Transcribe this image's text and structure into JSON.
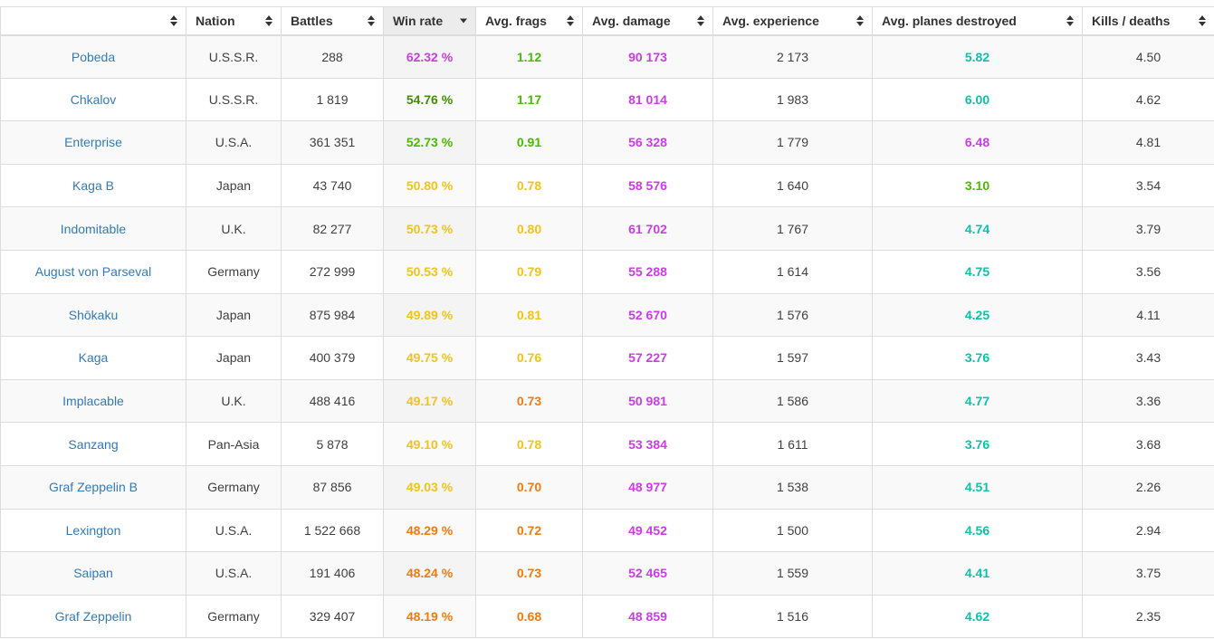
{
  "palette": {
    "violet": "#cb3ce8",
    "teal": "#0cc2a8",
    "green": "#4ab900",
    "dark_green": "#448c00",
    "yellow": "#f2c318",
    "orange": "#f57a0d",
    "link_blue": "#337ab7",
    "header_text": "#333333",
    "body_text": "#404040",
    "border": "#dddddd",
    "stripe_bg": "#f9f9f9",
    "active_sort_bg": "#ececec"
  },
  "table": {
    "columns": [
      {
        "id": "ship",
        "label": "",
        "sort": "both",
        "active": false
      },
      {
        "id": "nation",
        "label": "Nation",
        "sort": "both",
        "active": false
      },
      {
        "id": "battles",
        "label": "Battles",
        "sort": "both",
        "active": false
      },
      {
        "id": "win-rate",
        "label": "Win rate",
        "sort": "desc",
        "active": true
      },
      {
        "id": "avg-frags",
        "label": "Avg. frags",
        "sort": "both",
        "active": false
      },
      {
        "id": "avg-damage",
        "label": "Avg. damage",
        "sort": "both",
        "active": false
      },
      {
        "id": "avg-experience",
        "label": "Avg. experience",
        "sort": "both",
        "active": false
      },
      {
        "id": "avg-planes-destroyed",
        "label": "Avg. planes destroyed",
        "sort": "both",
        "active": false
      },
      {
        "id": "kills-deaths",
        "label": "Kills / deaths",
        "sort": "both",
        "active": false
      }
    ],
    "rows": [
      {
        "name": "Pobeda",
        "nation": "U.S.S.R.",
        "battles": "288",
        "win_rate": "62.32 %",
        "win_rate_color": "violet",
        "avg_frags": "1.12",
        "avg_frags_color": "green",
        "avg_damage": "90 173",
        "avg_damage_color": "violet",
        "avg_experience": "2 173",
        "avg_planes": "5.82",
        "avg_planes_color": "teal",
        "kills_deaths": "4.50"
      },
      {
        "name": "Chkalov",
        "nation": "U.S.S.R.",
        "battles": "1 819",
        "win_rate": "54.76 %",
        "win_rate_color": "dark_green",
        "avg_frags": "1.17",
        "avg_frags_color": "green",
        "avg_damage": "81 014",
        "avg_damage_color": "violet",
        "avg_experience": "1 983",
        "avg_planes": "6.00",
        "avg_planes_color": "teal",
        "kills_deaths": "4.62"
      },
      {
        "name": "Enterprise",
        "nation": "U.S.A.",
        "battles": "361 351",
        "win_rate": "52.73 %",
        "win_rate_color": "green",
        "avg_frags": "0.91",
        "avg_frags_color": "green",
        "avg_damage": "56 328",
        "avg_damage_color": "violet",
        "avg_experience": "1 779",
        "avg_planes": "6.48",
        "avg_planes_color": "violet",
        "kills_deaths": "4.81"
      },
      {
        "name": "Kaga B",
        "nation": "Japan",
        "battles": "43 740",
        "win_rate": "50.80 %",
        "win_rate_color": "yellow",
        "avg_frags": "0.78",
        "avg_frags_color": "yellow",
        "avg_damage": "58 576",
        "avg_damage_color": "violet",
        "avg_experience": "1 640",
        "avg_planes": "3.10",
        "avg_planes_color": "green",
        "kills_deaths": "3.54"
      },
      {
        "name": "Indomitable",
        "nation": "U.K.",
        "battles": "82 277",
        "win_rate": "50.73 %",
        "win_rate_color": "yellow",
        "avg_frags": "0.80",
        "avg_frags_color": "yellow",
        "avg_damage": "61 702",
        "avg_damage_color": "violet",
        "avg_experience": "1 767",
        "avg_planes": "4.74",
        "avg_planes_color": "teal",
        "kills_deaths": "3.79"
      },
      {
        "name": "August von Parseval",
        "nation": "Germany",
        "battles": "272 999",
        "win_rate": "50.53 %",
        "win_rate_color": "yellow",
        "avg_frags": "0.79",
        "avg_frags_color": "yellow",
        "avg_damage": "55 288",
        "avg_damage_color": "violet",
        "avg_experience": "1 614",
        "avg_planes": "4.75",
        "avg_planes_color": "teal",
        "kills_deaths": "3.56"
      },
      {
        "name": "Shōkaku",
        "nation": "Japan",
        "battles": "875 984",
        "win_rate": "49.89 %",
        "win_rate_color": "yellow",
        "avg_frags": "0.81",
        "avg_frags_color": "yellow",
        "avg_damage": "52 670",
        "avg_damage_color": "violet",
        "avg_experience": "1 576",
        "avg_planes": "4.25",
        "avg_planes_color": "teal",
        "kills_deaths": "4.11"
      },
      {
        "name": "Kaga",
        "nation": "Japan",
        "battles": "400 379",
        "win_rate": "49.75 %",
        "win_rate_color": "yellow",
        "avg_frags": "0.76",
        "avg_frags_color": "yellow",
        "avg_damage": "57 227",
        "avg_damage_color": "violet",
        "avg_experience": "1 597",
        "avg_planes": "3.76",
        "avg_planes_color": "teal",
        "kills_deaths": "3.43"
      },
      {
        "name": "Implacable",
        "nation": "U.K.",
        "battles": "488 416",
        "win_rate": "49.17 %",
        "win_rate_color": "yellow",
        "avg_frags": "0.73",
        "avg_frags_color": "orange",
        "avg_damage": "50 981",
        "avg_damage_color": "violet",
        "avg_experience": "1 586",
        "avg_planes": "4.77",
        "avg_planes_color": "teal",
        "kills_deaths": "3.36"
      },
      {
        "name": "Sanzang",
        "nation": "Pan-Asia",
        "battles": "5 878",
        "win_rate": "49.10 %",
        "win_rate_color": "yellow",
        "avg_frags": "0.78",
        "avg_frags_color": "yellow",
        "avg_damage": "53 384",
        "avg_damage_color": "violet",
        "avg_experience": "1 611",
        "avg_planes": "3.76",
        "avg_planes_color": "teal",
        "kills_deaths": "3.68"
      },
      {
        "name": "Graf Zeppelin B",
        "nation": "Germany",
        "battles": "87 856",
        "win_rate": "49.03 %",
        "win_rate_color": "yellow",
        "avg_frags": "0.70",
        "avg_frags_color": "orange",
        "avg_damage": "48 977",
        "avg_damage_color": "violet",
        "avg_experience": "1 538",
        "avg_planes": "4.51",
        "avg_planes_color": "teal",
        "kills_deaths": "2.26"
      },
      {
        "name": "Lexington",
        "nation": "U.S.A.",
        "battles": "1 522 668",
        "win_rate": "48.29 %",
        "win_rate_color": "orange",
        "avg_frags": "0.72",
        "avg_frags_color": "orange",
        "avg_damage": "49 452",
        "avg_damage_color": "violet",
        "avg_experience": "1 500",
        "avg_planes": "4.56",
        "avg_planes_color": "teal",
        "kills_deaths": "2.94"
      },
      {
        "name": "Saipan",
        "nation": "U.S.A.",
        "battles": "191 406",
        "win_rate": "48.24 %",
        "win_rate_color": "orange",
        "avg_frags": "0.73",
        "avg_frags_color": "orange",
        "avg_damage": "52 465",
        "avg_damage_color": "violet",
        "avg_experience": "1 559",
        "avg_planes": "4.41",
        "avg_planes_color": "teal",
        "kills_deaths": "3.75"
      },
      {
        "name": "Graf Zeppelin",
        "nation": "Germany",
        "battles": "329 407",
        "win_rate": "48.19 %",
        "win_rate_color": "orange",
        "avg_frags": "0.68",
        "avg_frags_color": "orange",
        "avg_damage": "48 859",
        "avg_damage_color": "violet",
        "avg_experience": "1 516",
        "avg_planes": "4.62",
        "avg_planes_color": "teal",
        "kills_deaths": "2.35"
      }
    ]
  }
}
